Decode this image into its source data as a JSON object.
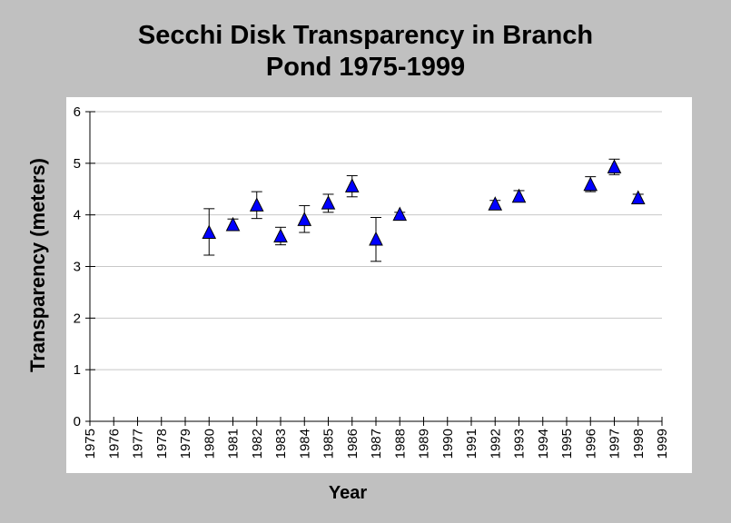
{
  "chart_data": {
    "type": "scatter",
    "title": "Secchi Disk Transparency in Branch Pond 1975-1999",
    "title_lines": [
      "Secchi Disk Transparency in Branch",
      "Pond 1975-1999"
    ],
    "xlabel": "Year",
    "ylabel": "Transparency (meters)",
    "xlim": [
      1975,
      1999
    ],
    "ylim": [
      0,
      6
    ],
    "x_ticks": [
      "1975",
      "1976",
      "1977",
      "1978",
      "1979",
      "1980",
      "1981",
      "1982",
      "1983",
      "1984",
      "1985",
      "1986",
      "1987",
      "1988",
      "1989",
      "1990",
      "1991",
      "1992",
      "1993",
      "1994",
      "1995",
      "1996",
      "1997",
      "1998",
      "1999"
    ],
    "y_ticks": [
      "0",
      "1",
      "2",
      "3",
      "4",
      "5",
      "6"
    ],
    "grid": true,
    "marker": "triangle",
    "marker_color": "#0000ff",
    "points": [
      {
        "x": 1980,
        "y": 3.65,
        "lo": 3.22,
        "hi": 4.12
      },
      {
        "x": 1981,
        "y": 3.8,
        "lo": 3.72,
        "hi": 3.92
      },
      {
        "x": 1982,
        "y": 4.18,
        "lo": 3.93,
        "hi": 4.45
      },
      {
        "x": 1983,
        "y": 3.58,
        "lo": 3.42,
        "hi": 3.76
      },
      {
        "x": 1984,
        "y": 3.9,
        "lo": 3.66,
        "hi": 4.18
      },
      {
        "x": 1985,
        "y": 4.22,
        "lo": 4.05,
        "hi": 4.4
      },
      {
        "x": 1986,
        "y": 4.55,
        "lo": 4.35,
        "hi": 4.76
      },
      {
        "x": 1987,
        "y": 3.52,
        "lo": 3.1,
        "hi": 3.95
      },
      {
        "x": 1988,
        "y": 4.0,
        "lo": 3.95,
        "hi": 4.05
      },
      {
        "x": 1992,
        "y": 4.2,
        "lo": 4.12,
        "hi": 4.28
      },
      {
        "x": 1993,
        "y": 4.35,
        "lo": 4.25,
        "hi": 4.47
      },
      {
        "x": 1996,
        "y": 4.58,
        "lo": 4.45,
        "hi": 4.74
      },
      {
        "x": 1997,
        "y": 4.92,
        "lo": 4.78,
        "hi": 5.08
      },
      {
        "x": 1998,
        "y": 4.32,
        "lo": 4.25,
        "hi": 4.4
      }
    ]
  }
}
